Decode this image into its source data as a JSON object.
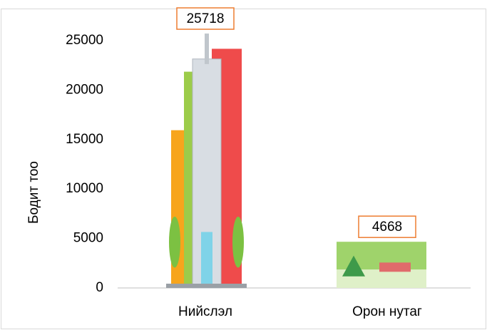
{
  "chart_data": {
    "type": "pictorial-bar",
    "y_label": "Бодит тоо",
    "categories": [
      "Нийслэл",
      "Орон нутаг"
    ],
    "values": [
      25718,
      4668
    ],
    "ylim": [
      0,
      28000
    ],
    "yticks": [
      0,
      5000,
      10000,
      15000,
      20000,
      25000
    ],
    "label_border_color": "#ed7d31"
  }
}
